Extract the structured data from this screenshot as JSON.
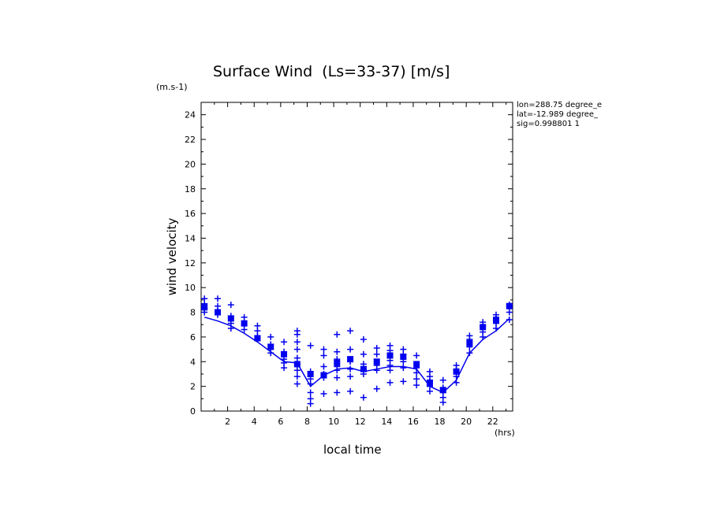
{
  "chart_data": {
    "type": "scatter",
    "title": "Surface Wind  (Ls=33-37) [m/s]",
    "ylabel": "wind velocity",
    "xlabel": "local time",
    "y_unit": "(m.s-1)",
    "x_unit": "(hrs)",
    "info_lines": [
      "lon=288.75 degree_e",
      "lat=-12.989 degree_",
      "sig=0.998801 1"
    ],
    "xlim": [
      0,
      23.5
    ],
    "ylim": [
      0,
      25
    ],
    "x_ticks": [
      2,
      4,
      6,
      8,
      10,
      12,
      14,
      16,
      18,
      20,
      22
    ],
    "y_ticks": [
      0,
      2,
      4,
      6,
      8,
      10,
      12,
      14,
      16,
      18,
      20,
      22,
      24
    ],
    "color": "#0000ee",
    "x": [
      0.25,
      1.25,
      2.25,
      3.25,
      4.25,
      5.25,
      6.25,
      7.25,
      8.25,
      9.25,
      10.25,
      11.25,
      12.25,
      13.25,
      14.25,
      15.25,
      16.25,
      17.25,
      18.25,
      19.25,
      20.25,
      21.25,
      22.25,
      23.25
    ],
    "series": [
      {
        "marker": "line",
        "values": [
          7.6,
          7.3,
          6.9,
          6.3,
          5.6,
          4.8,
          4.0,
          3.9,
          2.0,
          2.9,
          3.4,
          3.5,
          3.2,
          3.4,
          3.6,
          3.6,
          3.4,
          2.0,
          1.5,
          2.5,
          4.7,
          5.8,
          6.5,
          7.5
        ]
      },
      {
        "marker": "square",
        "values": [
          8.4,
          8.0,
          7.5,
          7.1,
          5.9,
          5.2,
          4.6,
          3.8,
          3.0,
          2.9,
          3.9,
          4.2,
          3.4,
          4.0,
          4.5,
          4.4,
          3.8,
          2.3,
          1.7,
          3.2,
          5.5,
          6.8,
          7.4,
          8.5
        ]
      },
      {
        "marker": "plus",
        "points": [
          [
            0.25,
            9.1
          ],
          [
            0.25,
            8.7
          ],
          [
            0.25,
            8.3
          ],
          [
            0.25,
            8.0
          ],
          [
            1.25,
            9.1
          ],
          [
            1.25,
            8.5
          ],
          [
            1.25,
            8.1
          ],
          [
            1.25,
            7.8
          ],
          [
            2.25,
            8.6
          ],
          [
            2.25,
            7.7
          ],
          [
            2.25,
            7.1
          ],
          [
            2.25,
            6.7
          ],
          [
            3.25,
            7.6
          ],
          [
            3.25,
            7.0
          ],
          [
            3.25,
            6.6
          ],
          [
            4.25,
            6.9
          ],
          [
            4.25,
            6.5
          ],
          [
            4.25,
            6.1
          ],
          [
            4.25,
            5.8
          ],
          [
            5.25,
            6.0
          ],
          [
            5.25,
            5.4
          ],
          [
            5.25,
            5.0
          ],
          [
            5.25,
            4.7
          ],
          [
            6.25,
            5.6
          ],
          [
            6.25,
            4.8
          ],
          [
            6.25,
            4.2
          ],
          [
            6.25,
            3.9
          ],
          [
            6.25,
            3.5
          ],
          [
            7.25,
            6.5
          ],
          [
            7.25,
            6.2
          ],
          [
            7.25,
            5.6
          ],
          [
            7.25,
            5.0
          ],
          [
            7.25,
            4.3
          ],
          [
            7.25,
            3.8
          ],
          [
            7.25,
            3.3
          ],
          [
            7.25,
            2.8
          ],
          [
            7.25,
            2.2
          ],
          [
            8.25,
            5.3
          ],
          [
            8.25,
            3.2
          ],
          [
            8.25,
            2.6
          ],
          [
            8.25,
            2.2
          ],
          [
            8.25,
            1.5
          ],
          [
            8.25,
            1.0
          ],
          [
            8.25,
            0.6
          ],
          [
            9.25,
            5.0
          ],
          [
            9.25,
            4.5
          ],
          [
            9.25,
            3.6
          ],
          [
            9.25,
            3.0
          ],
          [
            9.25,
            2.7
          ],
          [
            9.25,
            1.4
          ],
          [
            10.25,
            6.2
          ],
          [
            10.25,
            4.8
          ],
          [
            10.25,
            4.2
          ],
          [
            10.25,
            3.6
          ],
          [
            10.25,
            3.3
          ],
          [
            10.25,
            2.7
          ],
          [
            10.25,
            1.5
          ],
          [
            11.25,
            6.5
          ],
          [
            11.25,
            5.0
          ],
          [
            11.25,
            4.0
          ],
          [
            11.25,
            3.4
          ],
          [
            11.25,
            2.8
          ],
          [
            11.25,
            1.6
          ],
          [
            12.25,
            5.8
          ],
          [
            12.25,
            4.6
          ],
          [
            12.25,
            3.8
          ],
          [
            12.25,
            3.4
          ],
          [
            12.25,
            3.0
          ],
          [
            12.25,
            1.1
          ],
          [
            13.25,
            5.1
          ],
          [
            13.25,
            4.6
          ],
          [
            13.25,
            3.7
          ],
          [
            13.25,
            3.3
          ],
          [
            13.25,
            1.8
          ],
          [
            14.25,
            5.3
          ],
          [
            14.25,
            4.9
          ],
          [
            14.25,
            4.1
          ],
          [
            14.25,
            3.7
          ],
          [
            14.25,
            3.3
          ],
          [
            14.25,
            2.3
          ],
          [
            15.25,
            5.0
          ],
          [
            15.25,
            4.6
          ],
          [
            15.25,
            4.0
          ],
          [
            15.25,
            3.5
          ],
          [
            15.25,
            2.4
          ],
          [
            16.25,
            4.5
          ],
          [
            16.25,
            3.5
          ],
          [
            16.25,
            3.1
          ],
          [
            16.25,
            2.6
          ],
          [
            16.25,
            2.1
          ],
          [
            17.25,
            3.2
          ],
          [
            17.25,
            2.8
          ],
          [
            17.25,
            2.4
          ],
          [
            17.25,
            2.0
          ],
          [
            17.25,
            1.6
          ],
          [
            18.25,
            2.5
          ],
          [
            18.25,
            1.9
          ],
          [
            18.25,
            1.5
          ],
          [
            18.25,
            1.1
          ],
          [
            18.25,
            0.7
          ],
          [
            19.25,
            3.7
          ],
          [
            19.25,
            3.4
          ],
          [
            19.25,
            2.8
          ],
          [
            19.25,
            2.3
          ],
          [
            20.25,
            6.1
          ],
          [
            20.25,
            5.8
          ],
          [
            20.25,
            5.2
          ],
          [
            20.25,
            4.7
          ],
          [
            21.25,
            7.2
          ],
          [
            21.25,
            6.9
          ],
          [
            21.25,
            6.4
          ],
          [
            21.25,
            6.0
          ],
          [
            22.25,
            7.8
          ],
          [
            22.25,
            7.5
          ],
          [
            22.25,
            7.1
          ],
          [
            22.25,
            6.7
          ],
          [
            23.25,
            8.6
          ],
          [
            23.25,
            8.0
          ],
          [
            23.25,
            7.4
          ]
        ]
      }
    ]
  }
}
